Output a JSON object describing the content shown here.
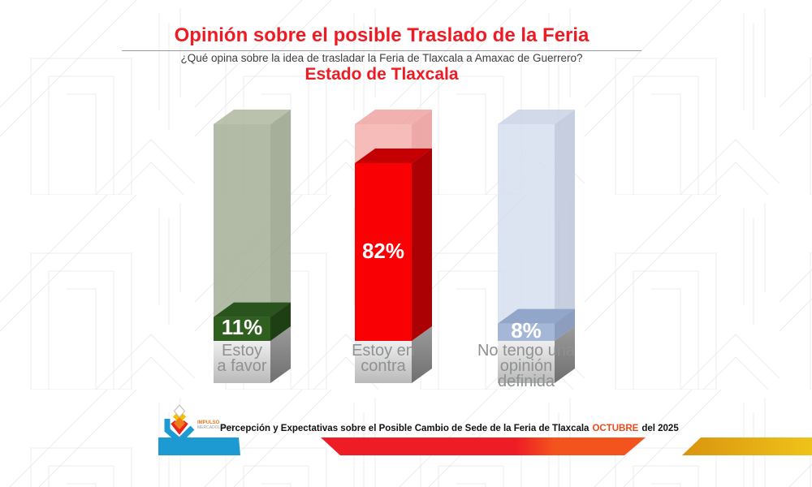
{
  "header": {
    "title": "Opinión sobre el posible Traslado de la Feria",
    "subtitle": "¿Qué opina sobre la idea de trasladar la Feria de Tlaxcala a Amaxac de Guerrero?",
    "region_label": "Estado de Tlaxcala",
    "accent_color": "#ed1c24",
    "subtitle_color": "#3e3e3e"
  },
  "chart_data": {
    "type": "bar",
    "title": "Opinión sobre el posible Traslado de la Feria",
    "subtitle": "¿Qué opina sobre la idea de trasladar la Feria de Tlaxcala a Amaxac de Guerrero?",
    "region": "Estado de Tlaxcala",
    "unit": "%",
    "ylim": [
      0,
      100
    ],
    "grid": false,
    "legend": false,
    "style": "3d-cuboid-bars-with-full-height-ghost",
    "categories": [
      "Estoy a favor",
      "Estoy en contra",
      "No tengo una opinión definida"
    ],
    "values": [
      11,
      82,
      8
    ],
    "bars": [
      {
        "value": 11,
        "category_lines": [
          "Estoy",
          "a favor"
        ],
        "solid": {
          "front": "#30601f",
          "top": "#2a541d",
          "side": "#1e3f14"
        },
        "ghost": {
          "front": "#a5af96",
          "top": "#aeb7a0",
          "side": "#96a188"
        }
      },
      {
        "value": 82,
        "category_lines": [
          "Estoy en",
          "contra"
        ],
        "solid": {
          "front": "#f80004",
          "top": "#c40003",
          "side": "#ac0104"
        },
        "ghost": {
          "front": "#f4b0ae",
          "top": "#efa3a1",
          "side": "#ea9a99"
        }
      },
      {
        "value": 8,
        "category_lines": [
          "No tengo una",
          "opinión",
          "definida"
        ],
        "solid": {
          "front": "#a5b7d7",
          "top": "#92a6c9",
          "side": "#8c9dbd"
        },
        "ghost": {
          "front": "#d6deee",
          "top": "#cad4e6",
          "side": "#bcc6da"
        }
      }
    ],
    "pedestal": {
      "front_top": "#efefef",
      "front_bottom": "#b9b9b9",
      "side_top": "#9b9b9b",
      "side_bottom": "#6f6f6f",
      "label_color": "#8e9192"
    },
    "value_label_color": "#ffffff"
  },
  "footer": {
    "logo": {
      "line1": "IMPULSO",
      "line2": "MERCADOLÓGICO",
      "line1_color": "#e07b20",
      "line2_color": "#9a9a9a"
    },
    "caption": {
      "part1": "Percepción y Expectativas sobre el Posible Cambio de Sede de la Feria de Tlaxcala",
      "highlight": "OCTUBRE",
      "part2": "del 2025",
      "text_color": "#111111",
      "highlight_color": "#e84a1c"
    },
    "strip": {
      "blue": "#1e9ad3",
      "red": "#ee1c25",
      "orange": "#f3541d",
      "gold_left": "#d9940f",
      "gold_right": "#f0c41a"
    }
  }
}
